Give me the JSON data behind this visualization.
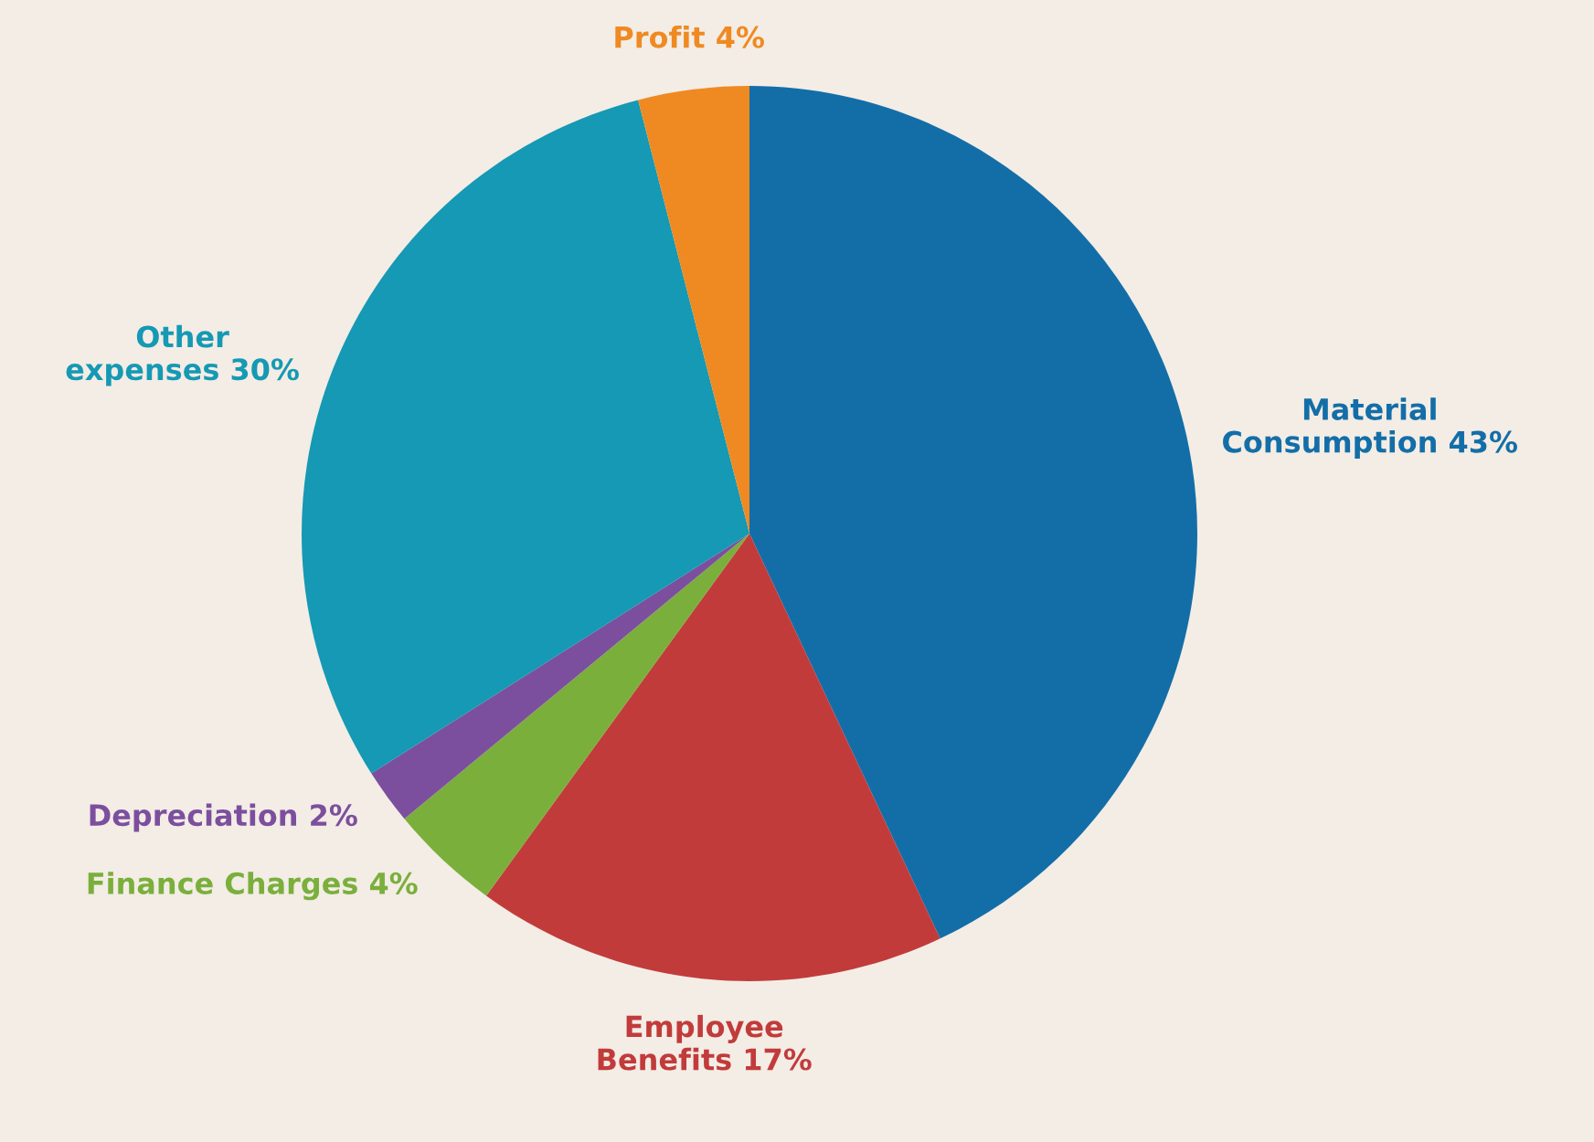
{
  "chart_data": {
    "type": "pie",
    "categories": [
      "Material Consumption",
      "Employee Benefits",
      "Finance Charges",
      "Depreciation",
      "Other expenses",
      "Profit"
    ],
    "values": [
      43,
      17,
      4,
      2,
      30,
      4
    ],
    "value_labels": [
      "43%",
      "17%",
      "4%",
      "2%",
      "30%",
      "4%"
    ],
    "colors": [
      "#136ea8",
      "#c23b3b",
      "#7aaf3c",
      "#7c4f9e",
      "#1599b4",
      "#ef8a22"
    ]
  }
}
